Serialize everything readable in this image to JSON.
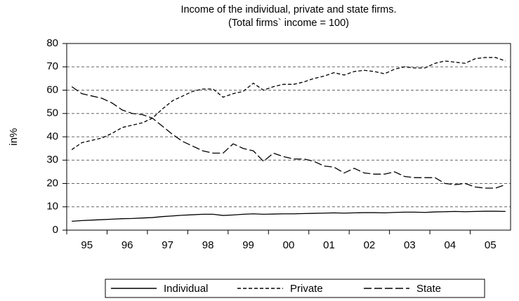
{
  "chart_data": {
    "type": "line",
    "title": "Income of the individual, private and state firms.",
    "subtitle": "(Total firms` income = 100)",
    "y_label": "in%",
    "categories": [
      null,
      "95",
      null,
      null,
      null,
      "96",
      null,
      null,
      null,
      "97",
      null,
      null,
      null,
      "98",
      null,
      null,
      null,
      "99",
      null,
      null,
      null,
      "00",
      null,
      null,
      null,
      "01",
      null,
      null,
      null,
      "02",
      null,
      null,
      null,
      "03",
      null,
      null,
      null,
      "04",
      null,
      null,
      null,
      "05",
      null,
      null
    ],
    "series": [
      {
        "name": "Individual",
        "color": "#000000",
        "dash": "none",
        "values": [
          3.8,
          4.1,
          4.3,
          4.5,
          4.7,
          4.9,
          5.0,
          5.2,
          5.4,
          5.8,
          6.1,
          6.4,
          6.6,
          6.8,
          6.8,
          6.3,
          6.5,
          6.8,
          7.0,
          6.8,
          6.9,
          7.0,
          7.0,
          7.1,
          7.2,
          7.3,
          7.4,
          7.3,
          7.4,
          7.5,
          7.5,
          7.4,
          7.6,
          7.7,
          7.7,
          7.6,
          7.8,
          7.9,
          8.0,
          7.9,
          8.0,
          8.1,
          8.1,
          8.0
        ]
      },
      {
        "name": "Private",
        "color": "#000000",
        "dash": "5,3",
        "values": [
          34.5,
          37.5,
          38.5,
          39.5,
          41.5,
          44,
          45,
          46,
          48,
          52,
          55.5,
          57.5,
          59.5,
          60.5,
          60.5,
          57,
          58.5,
          59.5,
          63,
          60,
          61.5,
          62.5,
          62.5,
          63.5,
          65,
          66,
          67.5,
          66.5,
          68,
          68.5,
          68,
          67,
          69,
          70,
          69.5,
          69.5,
          71.5,
          72.5,
          72,
          71.5,
          73.5,
          74,
          74,
          72.5
        ]
      },
      {
        "name": "State",
        "color": "#000000",
        "dash": "11,4",
        "values": [
          61.5,
          58.5,
          57.5,
          56.5,
          54.5,
          51.5,
          50,
          49.5,
          48,
          44.5,
          41,
          38,
          36,
          34,
          33,
          33,
          37,
          35,
          34,
          29.5,
          33,
          31.5,
          30.5,
          30.5,
          29.5,
          27.5,
          27,
          24.5,
          26.5,
          24.5,
          24,
          24,
          25,
          23,
          22.5,
          22.5,
          22.5,
          20,
          19.5,
          20,
          18.5,
          18,
          18,
          19.5
        ]
      }
    ],
    "ylim": [
      0,
      80
    ],
    "yticks": [
      0,
      10,
      20,
      30,
      40,
      50,
      60,
      70,
      80
    ],
    "grid": true,
    "legend": "bottom"
  }
}
